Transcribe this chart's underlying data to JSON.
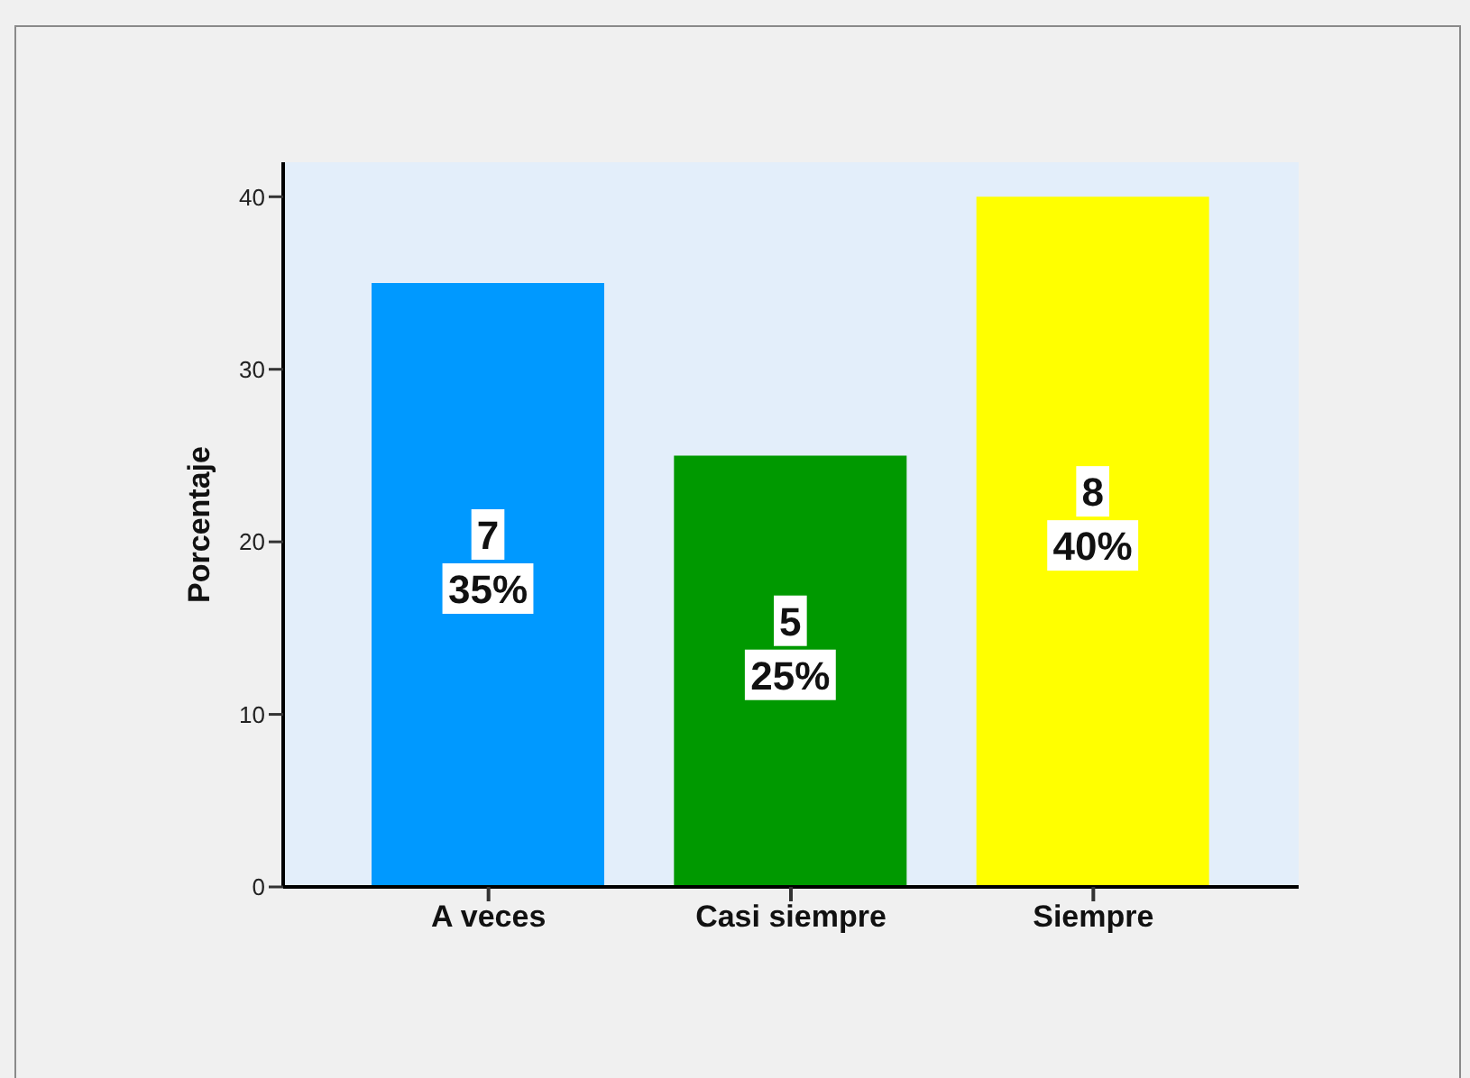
{
  "chart_data": {
    "type": "bar",
    "ylabel": "Porcentaje",
    "categories": [
      "A veces",
      "Casi siempre",
      "Siempre"
    ],
    "values": [
      35,
      25,
      40
    ],
    "colors": [
      "#0099ff",
      "#009900",
      "#ffff00"
    ],
    "value_labels": [
      "7\n35%",
      "5\n25%",
      "8\n40%"
    ],
    "ylim": [
      0,
      42
    ],
    "yticks": [
      0,
      10,
      20,
      30,
      40
    ]
  }
}
